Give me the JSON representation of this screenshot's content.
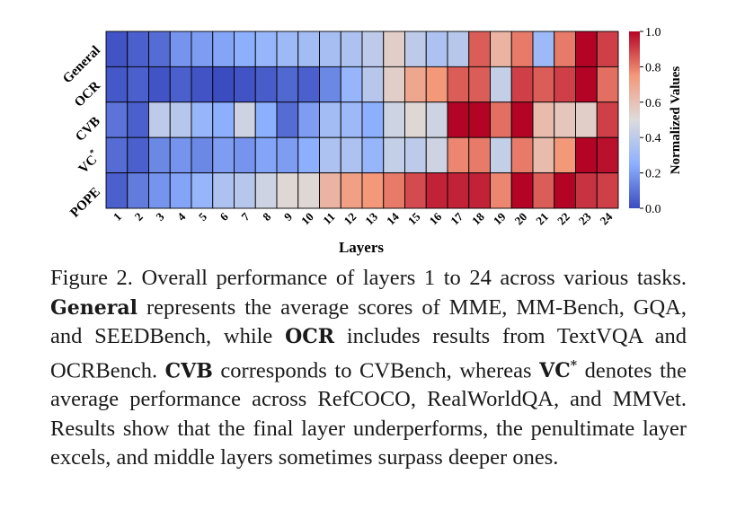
{
  "chart_data": {
    "type": "heatmap",
    "xlabel": "Layers",
    "colorbar_label": "Normalized Values",
    "x": [
      "1",
      "2",
      "3",
      "4",
      "5",
      "6",
      "7",
      "8",
      "9",
      "10",
      "11",
      "12",
      "13",
      "14",
      "15",
      "16",
      "17",
      "18",
      "19",
      "20",
      "21",
      "22",
      "23",
      "24"
    ],
    "rows": [
      "General",
      "OCR",
      "CVB",
      "VC*",
      "POPE"
    ],
    "row_tick_labels": [
      {
        "text": "General",
        "sup": ""
      },
      {
        "text": "OCR",
        "sup": ""
      },
      {
        "text": "CVB",
        "sup": ""
      },
      {
        "text": "VC",
        "sup": "*"
      },
      {
        "text": "POPE",
        "sup": ""
      }
    ],
    "values": [
      [
        0.02,
        0.05,
        0.08,
        0.18,
        0.2,
        0.22,
        0.25,
        0.28,
        0.3,
        0.32,
        0.33,
        0.35,
        0.4,
        0.55,
        0.4,
        0.35,
        0.38,
        0.85,
        0.65,
        0.8,
        0.3,
        0.8,
        1.0,
        0.9
      ],
      [
        0.03,
        0.05,
        0.02,
        0.05,
        0.02,
        0.0,
        0.02,
        0.04,
        0.07,
        0.05,
        0.15,
        0.28,
        0.38,
        0.55,
        0.7,
        0.75,
        0.85,
        0.85,
        0.42,
        0.9,
        0.85,
        0.9,
        1.0,
        0.82
      ],
      [
        0.1,
        0.05,
        0.4,
        0.38,
        0.28,
        0.25,
        0.45,
        0.25,
        0.08,
        0.2,
        0.32,
        0.3,
        0.25,
        0.45,
        0.52,
        0.45,
        1.0,
        1.0,
        0.82,
        1.0,
        0.62,
        0.58,
        0.55,
        0.9
      ],
      [
        0.08,
        0.05,
        0.15,
        0.18,
        0.15,
        0.2,
        0.18,
        0.22,
        0.2,
        0.25,
        0.35,
        0.35,
        0.28,
        0.42,
        0.4,
        0.45,
        0.78,
        0.8,
        0.42,
        0.8,
        0.62,
        0.75,
        1.0,
        0.98
      ],
      [
        0.05,
        0.12,
        0.18,
        0.22,
        0.28,
        0.35,
        0.38,
        0.45,
        0.52,
        0.52,
        0.65,
        0.72,
        0.75,
        0.8,
        0.88,
        0.95,
        0.95,
        0.95,
        0.78,
        1.0,
        0.85,
        1.0,
        0.92,
        0.9
      ]
    ],
    "colorbar_ticks": [
      "0.0",
      "0.2",
      "0.4",
      "0.6",
      "0.8",
      "1.0"
    ],
    "vmin": 0.0,
    "vmax": 1.0,
    "colormap": "coolwarm",
    "colors": {
      "low": "#3b4cc0",
      "mid": "#dddcdc",
      "high": "#b40426",
      "grid": "#000000"
    }
  },
  "caption": {
    "prefix": "Figure 2.  Overall performance of layers 1 to 24 across various tasks.  ",
    "general_term": "General",
    "part1": " represents the average scores of MME, MM-Bench, GQA, and SEEDBench, while ",
    "ocr_term": "OCR",
    "part2": " includes results from TextVQA and OCRBench. ",
    "cvb_term": "CVB",
    "part3": " corresponds to CVBench, whereas ",
    "vc_term": "VC",
    "vc_sup": "*",
    "part4": " denotes the average performance across RefCOCO, RealWorldQA, and MMVet.  Results show that the final layer underperforms, the penultimate layer excels, and middle layers sometimes surpass deeper ones."
  }
}
